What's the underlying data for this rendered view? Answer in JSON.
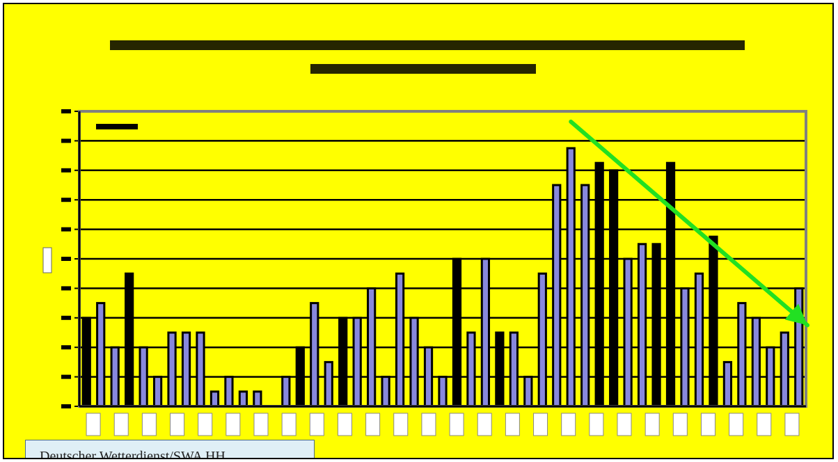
{
  "chart_data": {
    "type": "bar",
    "title": "",
    "subtitle": "",
    "ylabel": "",
    "xlabel": "",
    "legend_text": "",
    "ylim": [
      0,
      20
    ],
    "y_ticks": [
      0,
      2,
      4,
      6,
      8,
      10,
      12,
      14,
      16,
      18,
      20
    ],
    "grid": true,
    "values": [
      6,
      7,
      4,
      9,
      4,
      2,
      5,
      5,
      5,
      1,
      2,
      1,
      1,
      0,
      2,
      4,
      7,
      3,
      6,
      6,
      8,
      2,
      9,
      6,
      4,
      2,
      10,
      5,
      10,
      5,
      5,
      2,
      9,
      15,
      17.5,
      15,
      16.5,
      16,
      10,
      11,
      11,
      16.5,
      8,
      9,
      11.5,
      3,
      7,
      6,
      4,
      5,
      8
    ],
    "fills": [
      "dark",
      "blue",
      "blue",
      "dark",
      "blue",
      "blue",
      "blue",
      "blue",
      "blue",
      "blue",
      "blue",
      "blue",
      "blue",
      "blue",
      "blue",
      "dark",
      "blue",
      "blue",
      "dark",
      "blue",
      "blue",
      "blue",
      "blue",
      "blue",
      "blue",
      "blue",
      "dark",
      "blue",
      "blue",
      "dark",
      "blue",
      "blue",
      "blue",
      "blue",
      "blue",
      "blue",
      "dark",
      "dark",
      "blue",
      "blue",
      "dark",
      "dark",
      "blue",
      "blue",
      "dark",
      "blue",
      "blue",
      "blue",
      "blue",
      "blue",
      "blue"
    ],
    "x_tick_count": 26,
    "trend_arrow": {
      "from": {
        "index": 34,
        "value": 19.3
      },
      "to": {
        "index": 50.6,
        "value": 5.5
      }
    },
    "colors": {
      "background": "#ffff00",
      "bar_blue": "#8888dd",
      "bar_dark": "#000000",
      "grid": "#000000",
      "plot_border": "#808080",
      "arrow": "#22e022"
    }
  },
  "credit": "Deutscher Wetterdienst/SWA HH"
}
